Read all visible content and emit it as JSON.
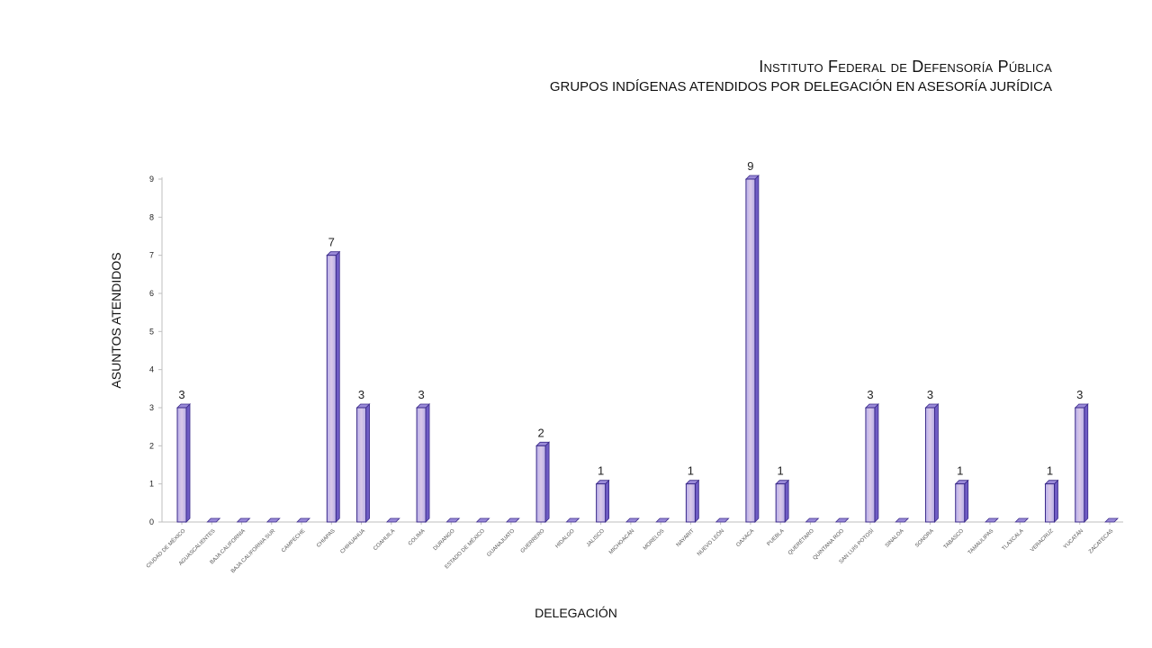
{
  "chart_data": {
    "type": "bar",
    "title": "Instituto Federal de Defensoría Pública",
    "subtitle": "GRUPOS  INDÍGENAS ATENDIDOS POR DELEGACIÓN EN ASESORÍA JURÍDICA",
    "xlabel": "DELEGACIÓN",
    "ylabel": "ASUNTOS ATENDIDOS",
    "ylim": [
      0,
      9
    ],
    "yticks": [
      "0",
      "1",
      "2",
      "3",
      "4",
      "5",
      "6",
      "7",
      "8",
      "9"
    ],
    "categories": [
      "CIUDAD DE MÉXICO",
      "AGUASCALIENTES",
      "BAJA CALIFORNIA",
      "BAJA CALIFORNIA SUR",
      "CAMPECHE",
      "CHIAPAS",
      "CHIHUAHUA",
      "COAHUILA",
      "COLIMA",
      "DURANGO",
      "ESTADO DE MÉXICO",
      "GUANAJUATO",
      "GUERRERO",
      "HIDALGO",
      "JALISCO",
      "MICHOACÁN",
      "MORELOS",
      "NAYARIT",
      "NUEVO LEÓN",
      "OAXACA",
      "PUEBLA",
      "QUERÉTARO",
      "QUINTANA ROO",
      "SAN LUIS POTOSÍ",
      "SINALOA",
      "SONORA",
      "TABASCO",
      "TAMAULIPAS",
      "TLAXCALA",
      "VERACRUZ",
      "YUCATÁN",
      "ZACATECAS"
    ],
    "values": [
      3,
      0,
      0,
      0,
      0,
      7,
      3,
      0,
      3,
      0,
      0,
      0,
      2,
      0,
      1,
      0,
      0,
      1,
      0,
      9,
      1,
      0,
      0,
      3,
      0,
      3,
      1,
      0,
      0,
      1,
      3,
      0
    ],
    "data_labels": [
      "3",
      "",
      "",
      "",
      "",
      "7",
      "3",
      "",
      "3",
      "",
      "",
      "",
      "2",
      "",
      "1",
      "",
      "",
      "1",
      "",
      "9",
      "1",
      "",
      "",
      "3",
      "",
      "3",
      "1",
      "",
      "",
      "1",
      "3",
      ""
    ],
    "colors": {
      "bar_front": "#c9c2ec",
      "bar_side": "#6f5cc4",
      "bar_top": "#9a8ad8",
      "bar_stroke": "#3b2a8a",
      "axis": "#bfbfbf"
    },
    "grid": false,
    "legend": "none"
  }
}
